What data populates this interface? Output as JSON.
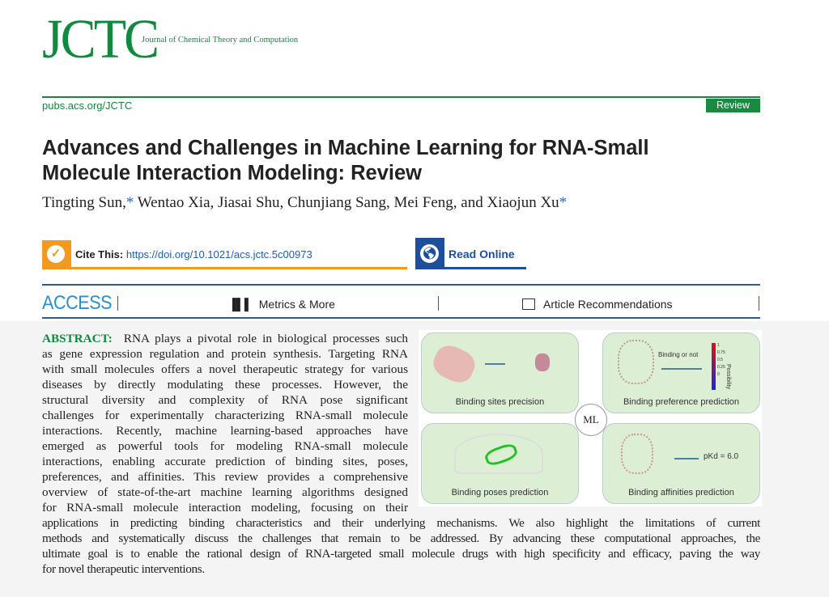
{
  "header": {
    "logo": "JCTC",
    "journal_name": "Journal of Chemical Theory and Computation",
    "url": "pubs.acs.org/JCTC",
    "article_type": "Review"
  },
  "article": {
    "title_line1": "Advances and Challenges in Machine Learning for RNA-Small",
    "title_line2": "Molecule Interaction Modeling: Review",
    "authors": [
      "Tingting Sun,",
      "Wentao Xia, Jiasai Shu, Chunjiang Sang, Mei Feng, and Xiaojun Xu"
    ],
    "corresponding_mark": "*"
  },
  "links": {
    "cite_label": "Cite This:",
    "cite_doi": "https://doi.org/10.1021/acs.jctc.5c00973",
    "read_online": "Read Online"
  },
  "access_bar": {
    "access": "ACCESS",
    "metrics": "Metrics & More",
    "recommendations": "Article Recommendations"
  },
  "abstract": {
    "label": "ABSTRACT:",
    "narrow_lines": [
      "RNA plays a pivotal role in biological processes such",
      "as gene expression regulation and protein synthesis. Targeting RNA",
      "with small molecules offers a novel therapeutic strategy for various",
      "diseases by directly modulating these processes. However, the",
      "structural diversity and complexity of RNA pose significant",
      "challenges for experimentally characterizing RNA-small molecule",
      "interactions. Recently, machine learning-based approaches have",
      "emerged as powerful tools for modeling RNA-small molecule",
      "interactions, enabling accurate prediction of binding sites, poses,",
      "preferences, and affinities. This review provides a comprehensive",
      "overview of state-of-the-art machine learning algorithms designed",
      "for RNA-small molecule interaction modeling, focusing on their"
    ],
    "wide_lines": [
      "applications in predicting binding characteristics and their underlying mechanisms. We also highlight the limitations of current",
      "methods and systematically discuss the challenges that remain to be addressed. By advancing these computational approaches, the",
      "ultimate goal is to enable the rational design of RNA-targeted small molecule drugs with high specificity and efficacy, paving the way",
      "for novel therapeutic interventions."
    ]
  },
  "toc_graphic": {
    "center": "ML",
    "panels": [
      "Binding sites precision",
      "Binding preference prediction",
      "Binding poses prediction",
      "Binding affinities prediction"
    ],
    "preference_text": "Binding or not",
    "colorbar_label": "Possibility",
    "colorbar_ticks": [
      "1",
      "0.75",
      "0.5",
      "0.25",
      "0"
    ],
    "affinity_text": "pKd = 6.0",
    "colors": {
      "panel": "#dcefd5",
      "ligand": "#22c022"
    }
  }
}
